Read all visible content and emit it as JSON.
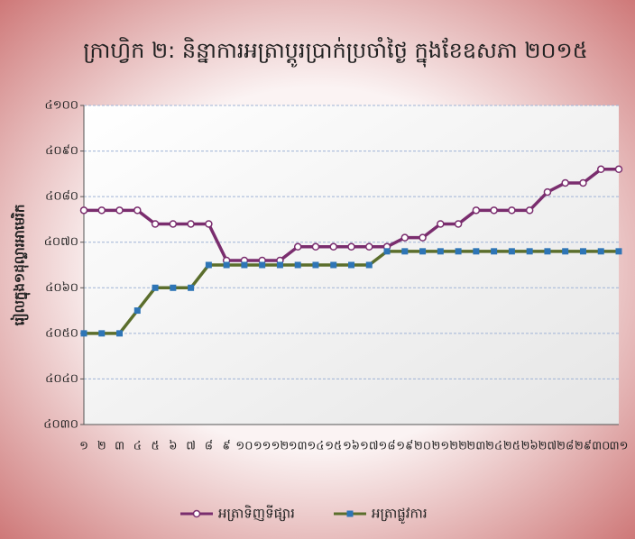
{
  "chart_data": {
    "type": "line",
    "title": "ក្រាហ្វិក ២: និន្នាការអត្រាប្តូរប្រាក់ប្រចាំថ្ងៃ ក្នុងខែឧសភា ២០១៥",
    "y_label": "រៀលក្នុង១ដុល្លារអាមេរិក",
    "categories": [
      "១",
      "២",
      "៣",
      "៤",
      "៥",
      "៦",
      "៧",
      "៨",
      "៩",
      "១០",
      "១១",
      "១២",
      "១៣",
      "១៤",
      "១៥",
      "១៦",
      "១៧",
      "១៨",
      "១៩",
      "២០",
      "២១",
      "២២",
      "២៣",
      "២៤",
      "២៥",
      "២៦",
      "២៧",
      "២៨",
      "២៩",
      "៣០",
      "៣១"
    ],
    "series": [
      {
        "name": "អត្រាទិញទីផ្សារ",
        "color": "#7a2d6e",
        "marker": "circle",
        "values": [
          4077,
          4077,
          4077,
          4077,
          4074,
          4074,
          4074,
          4074,
          4066,
          4066,
          4066,
          4066,
          4069,
          4069,
          4069,
          4069,
          4069,
          4069,
          4071,
          4071,
          4074,
          4074,
          4077,
          4077,
          4077,
          4077,
          4081,
          4083,
          4083,
          4086,
          4086
        ]
      },
      {
        "name": "អត្រាផ្លូវការ",
        "color": "#5b6e2c",
        "marker": "square",
        "values": [
          4050,
          4050,
          4050,
          4055,
          4060,
          4060,
          4060,
          4065,
          4065,
          4065,
          4065,
          4065,
          4065,
          4065,
          4065,
          4065,
          4065,
          4068,
          4068,
          4068,
          4068,
          4068,
          4068,
          4068,
          4068,
          4068,
          4068,
          4068,
          4068,
          4068,
          4068
        ]
      }
    ],
    "ylim": [
      4030,
      4100
    ],
    "yticks": [
      {
        "value": 4030,
        "label": "៤០៣០"
      },
      {
        "value": 4040,
        "label": "៤០៤០"
      },
      {
        "value": 4050,
        "label": "៤០៥០"
      },
      {
        "value": 4060,
        "label": "៤០៦០"
      },
      {
        "value": 4070,
        "label": "៤០៧០"
      },
      {
        "value": 4080,
        "label": "៤០៨០"
      },
      {
        "value": 4090,
        "label": "៤០៩០"
      },
      {
        "value": 4100,
        "label": "៤១០០"
      }
    ],
    "grid": true,
    "legend": "bottom"
  }
}
